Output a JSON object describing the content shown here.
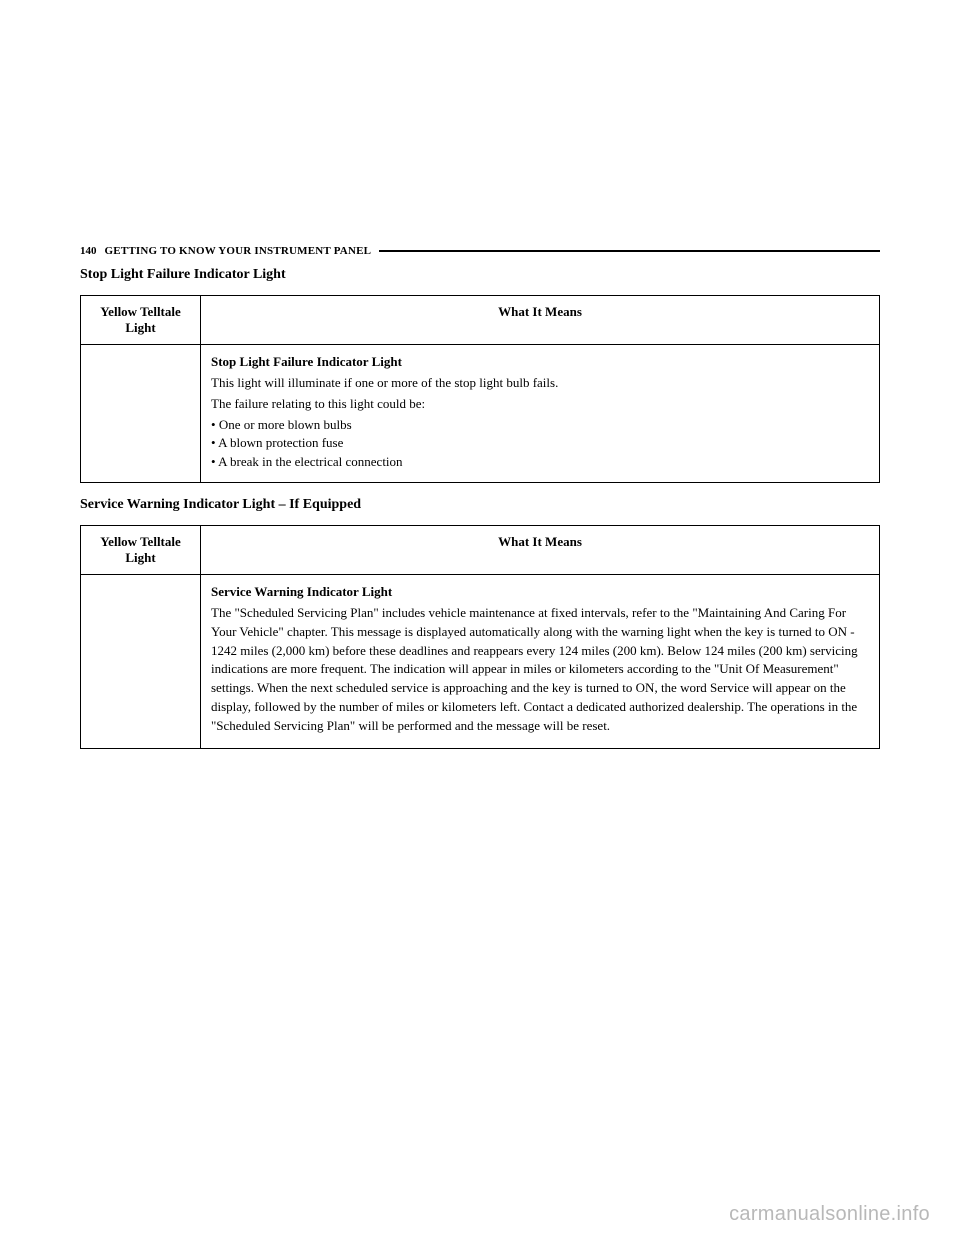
{
  "header": {
    "page_number": "140",
    "chapter": "GETTING TO KNOW YOUR INSTRUMENT PANEL"
  },
  "section1": {
    "title": "Stop Light Failure Indicator Light",
    "col1": "Yellow Telltale Light",
    "col2": "What It Means",
    "cell_title": "Stop Light Failure Indicator Light",
    "line1": "This light will illuminate if one or more of the stop light bulb fails.",
    "line2": "The failure relating to this light could be:",
    "bullets": {
      "b1": "One or more blown bulbs",
      "b2": "A blown protection fuse",
      "b3": "A break in the electrical connection"
    }
  },
  "section2": {
    "title": "Service Warning Indicator Light – If Equipped",
    "col1": "Yellow Telltale Light",
    "col2": "What It Means",
    "cell_title": "Service Warning Indicator Light",
    "body": "The \"Scheduled Servicing Plan\" includes vehicle maintenance at fixed intervals, refer to the \"Maintaining And Caring For Your Vehicle\" chapter. This message is displayed automatically along with the warning light when the key is turned to ON - 1242 miles (2,000 km) before these deadlines and reappears every 124 miles (200 km). Below 124 miles (200 km) servicing indications are more frequent. The indication will appear in miles or kilometers according to the \"Unit Of Measurement\" settings. When the next scheduled service is approaching and the key is turned to ON, the word Service will appear on the display, followed by the number of miles or kilometers left. Contact a dedicated authorized dealership. The operations in the \"Scheduled Servicing Plan\" will be performed and the message will be reset."
  },
  "watermark": "carmanualsonline.info"
}
